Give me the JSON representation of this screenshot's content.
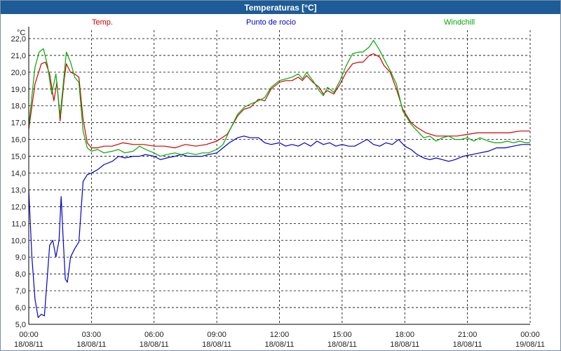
{
  "chart_data": {
    "type": "line",
    "title": "Temperaturas [°C]",
    "ylabel": "°C",
    "xlabel": "",
    "ylim": [
      5.0,
      22.5
    ],
    "xlim": [
      0,
      24
    ],
    "grid": true,
    "legend_placement": "top",
    "y_ticks": [
      "5,0",
      "6,0",
      "7,0",
      "8,0",
      "9,0",
      "10,0",
      "11,0",
      "12,0",
      "13,0",
      "14,0",
      "15,0",
      "16,0",
      "17,0",
      "18,0",
      "19,0",
      "20,0",
      "21,0",
      "22,0"
    ],
    "x_ticks": [
      {
        "time": "00:00",
        "date": "18/08/11"
      },
      {
        "time": "03:00",
        "date": "18/08/11"
      },
      {
        "time": "06:00",
        "date": "18/08/11"
      },
      {
        "time": "09:00",
        "date": "18/08/11"
      },
      {
        "time": "12:00",
        "date": "18/08/11"
      },
      {
        "time": "15:00",
        "date": "18/08/11"
      },
      {
        "time": "18:00",
        "date": "18/08/11"
      },
      {
        "time": "21:00",
        "date": "18/08/11"
      },
      {
        "time": "00:00",
        "date": "19/08/11"
      }
    ],
    "series": [
      {
        "name": "Temp.",
        "color": "#cc0000",
        "points": [
          [
            0.0,
            16.6
          ],
          [
            0.3,
            19.3
          ],
          [
            0.6,
            20.5
          ],
          [
            0.8,
            20.6
          ],
          [
            1.0,
            19.9
          ],
          [
            1.2,
            18.3
          ],
          [
            1.35,
            19.4
          ],
          [
            1.5,
            17.1
          ],
          [
            1.7,
            19.6
          ],
          [
            1.8,
            20.5
          ],
          [
            2.0,
            20.0
          ],
          [
            2.2,
            19.9
          ],
          [
            2.4,
            19.7
          ],
          [
            2.6,
            17.2
          ],
          [
            2.8,
            15.8
          ],
          [
            3.0,
            15.5
          ],
          [
            3.3,
            15.5
          ],
          [
            3.6,
            15.6
          ],
          [
            4.0,
            15.6
          ],
          [
            4.5,
            15.8
          ],
          [
            5.0,
            15.7
          ],
          [
            5.5,
            15.7
          ],
          [
            6.0,
            15.6
          ],
          [
            6.5,
            15.6
          ],
          [
            7.0,
            15.5
          ],
          [
            7.5,
            15.7
          ],
          [
            8.0,
            15.6
          ],
          [
            8.5,
            15.7
          ],
          [
            9.0,
            15.9
          ],
          [
            9.5,
            16.3
          ],
          [
            10.0,
            17.4
          ],
          [
            10.3,
            17.8
          ],
          [
            10.6,
            17.9
          ],
          [
            11.0,
            18.4
          ],
          [
            11.3,
            18.3
          ],
          [
            11.6,
            19.0
          ],
          [
            12.0,
            19.4
          ],
          [
            12.3,
            19.5
          ],
          [
            12.6,
            19.5
          ],
          [
            12.9,
            19.7
          ],
          [
            13.1,
            19.5
          ],
          [
            13.3,
            19.8
          ],
          [
            13.6,
            19.4
          ],
          [
            13.9,
            19.1
          ],
          [
            14.1,
            18.7
          ],
          [
            14.3,
            18.9
          ],
          [
            14.6,
            18.7
          ],
          [
            14.9,
            19.3
          ],
          [
            15.2,
            20.0
          ],
          [
            15.5,
            20.5
          ],
          [
            15.8,
            20.6
          ],
          [
            16.0,
            20.6
          ],
          [
            16.3,
            21.0
          ],
          [
            16.5,
            21.1
          ],
          [
            16.8,
            20.9
          ],
          [
            17.0,
            20.4
          ],
          [
            17.3,
            20.0
          ],
          [
            17.6,
            19.0
          ],
          [
            17.9,
            17.8
          ],
          [
            18.3,
            17.0
          ],
          [
            18.6,
            16.7
          ],
          [
            19.0,
            16.4
          ],
          [
            19.5,
            16.2
          ],
          [
            20.0,
            16.2
          ],
          [
            20.5,
            16.2
          ],
          [
            21.0,
            16.3
          ],
          [
            21.5,
            16.4
          ],
          [
            22.0,
            16.4
          ],
          [
            22.5,
            16.4
          ],
          [
            23.0,
            16.4
          ],
          [
            23.5,
            16.5
          ],
          [
            24.0,
            16.5
          ]
        ]
      },
      {
        "name": "Punto de rocio",
        "color": "#0000cc",
        "points": [
          [
            0.0,
            13.0
          ],
          [
            0.15,
            9.0
          ],
          [
            0.3,
            6.5
          ],
          [
            0.45,
            5.4
          ],
          [
            0.6,
            5.6
          ],
          [
            0.75,
            5.5
          ],
          [
            0.9,
            8.0
          ],
          [
            1.0,
            9.7
          ],
          [
            1.15,
            10.0
          ],
          [
            1.3,
            9.0
          ],
          [
            1.45,
            10.0
          ],
          [
            1.55,
            12.6
          ],
          [
            1.65,
            10.0
          ],
          [
            1.75,
            7.7
          ],
          [
            1.85,
            7.5
          ],
          [
            2.0,
            9.0
          ],
          [
            2.2,
            9.5
          ],
          [
            2.4,
            9.9
          ],
          [
            2.6,
            13.5
          ],
          [
            2.8,
            13.9
          ],
          [
            3.0,
            14.0
          ],
          [
            3.3,
            14.2
          ],
          [
            3.6,
            14.5
          ],
          [
            4.0,
            14.7
          ],
          [
            4.3,
            15.0
          ],
          [
            4.6,
            14.9
          ],
          [
            5.0,
            15.0
          ],
          [
            5.3,
            15.0
          ],
          [
            5.6,
            15.1
          ],
          [
            6.0,
            15.0
          ],
          [
            6.3,
            14.8
          ],
          [
            6.6,
            14.9
          ],
          [
            7.0,
            15.0
          ],
          [
            7.3,
            15.1
          ],
          [
            7.6,
            15.0
          ],
          [
            8.0,
            15.0
          ],
          [
            8.3,
            15.0
          ],
          [
            8.6,
            15.1
          ],
          [
            9.0,
            15.2
          ],
          [
            9.3,
            15.5
          ],
          [
            9.6,
            15.8
          ],
          [
            10.0,
            16.1
          ],
          [
            10.3,
            16.2
          ],
          [
            10.6,
            16.1
          ],
          [
            11.0,
            16.1
          ],
          [
            11.3,
            15.8
          ],
          [
            11.6,
            15.7
          ],
          [
            12.0,
            15.8
          ],
          [
            12.3,
            15.6
          ],
          [
            12.6,
            15.7
          ],
          [
            12.9,
            15.6
          ],
          [
            13.2,
            15.8
          ],
          [
            13.5,
            15.6
          ],
          [
            13.8,
            15.9
          ],
          [
            14.1,
            15.7
          ],
          [
            14.4,
            15.8
          ],
          [
            14.7,
            15.6
          ],
          [
            15.0,
            15.7
          ],
          [
            15.3,
            15.6
          ],
          [
            15.6,
            15.6
          ],
          [
            15.9,
            15.8
          ],
          [
            16.2,
            16.0
          ],
          [
            16.5,
            15.7
          ],
          [
            16.8,
            15.6
          ],
          [
            17.1,
            15.8
          ],
          [
            17.4,
            15.7
          ],
          [
            17.7,
            16.0
          ],
          [
            18.0,
            15.6
          ],
          [
            18.3,
            15.4
          ],
          [
            18.6,
            15.1
          ],
          [
            18.9,
            14.9
          ],
          [
            19.2,
            14.8
          ],
          [
            19.5,
            14.9
          ],
          [
            19.8,
            14.8
          ],
          [
            20.1,
            14.7
          ],
          [
            20.4,
            14.8
          ],
          [
            20.8,
            15.0
          ],
          [
            21.2,
            15.1
          ],
          [
            21.6,
            15.2
          ],
          [
            22.0,
            15.3
          ],
          [
            22.4,
            15.5
          ],
          [
            22.8,
            15.5
          ],
          [
            23.2,
            15.6
          ],
          [
            23.6,
            15.7
          ],
          [
            24.0,
            15.7
          ]
        ]
      },
      {
        "name": "Windchill",
        "color": "#00aa00",
        "points": [
          [
            0.0,
            16.8
          ],
          [
            0.3,
            20.3
          ],
          [
            0.5,
            21.2
          ],
          [
            0.7,
            21.4
          ],
          [
            0.9,
            20.4
          ],
          [
            1.1,
            18.7
          ],
          [
            1.3,
            19.9
          ],
          [
            1.5,
            17.4
          ],
          [
            1.7,
            19.9
          ],
          [
            1.8,
            21.2
          ],
          [
            2.0,
            20.6
          ],
          [
            2.2,
            19.7
          ],
          [
            2.4,
            19.4
          ],
          [
            2.6,
            16.5
          ],
          [
            2.8,
            15.5
          ],
          [
            3.0,
            15.3
          ],
          [
            3.3,
            15.4
          ],
          [
            3.6,
            15.2
          ],
          [
            4.0,
            15.3
          ],
          [
            4.3,
            15.4
          ],
          [
            4.6,
            15.2
          ],
          [
            5.0,
            15.3
          ],
          [
            5.3,
            15.6
          ],
          [
            5.6,
            15.4
          ],
          [
            6.0,
            15.2
          ],
          [
            6.3,
            15.0
          ],
          [
            6.6,
            15.1
          ],
          [
            7.0,
            15.2
          ],
          [
            7.3,
            15.1
          ],
          [
            7.6,
            15.2
          ],
          [
            8.0,
            15.1
          ],
          [
            8.3,
            15.2
          ],
          [
            8.6,
            15.2
          ],
          [
            9.0,
            15.4
          ],
          [
            9.3,
            15.7
          ],
          [
            9.6,
            16.5
          ],
          [
            10.0,
            17.5
          ],
          [
            10.3,
            17.9
          ],
          [
            10.6,
            18.1
          ],
          [
            11.0,
            18.3
          ],
          [
            11.3,
            18.5
          ],
          [
            11.6,
            19.1
          ],
          [
            12.0,
            19.5
          ],
          [
            12.3,
            19.6
          ],
          [
            12.6,
            19.7
          ],
          [
            12.9,
            19.9
          ],
          [
            13.1,
            19.6
          ],
          [
            13.3,
            20.0
          ],
          [
            13.6,
            19.5
          ],
          [
            13.9,
            18.9
          ],
          [
            14.1,
            18.6
          ],
          [
            14.3,
            19.1
          ],
          [
            14.6,
            18.8
          ],
          [
            14.9,
            19.5
          ],
          [
            15.2,
            20.4
          ],
          [
            15.5,
            21.1
          ],
          [
            15.8,
            21.2
          ],
          [
            16.0,
            21.2
          ],
          [
            16.3,
            21.5
          ],
          [
            16.5,
            21.9
          ],
          [
            16.8,
            21.3
          ],
          [
            17.0,
            20.8
          ],
          [
            17.3,
            20.1
          ],
          [
            17.6,
            19.3
          ],
          [
            17.9,
            17.7
          ],
          [
            18.3,
            16.9
          ],
          [
            18.6,
            16.5
          ],
          [
            18.9,
            16.1
          ],
          [
            19.2,
            16.2
          ],
          [
            19.5,
            15.9
          ],
          [
            19.8,
            16.1
          ],
          [
            20.1,
            16.2
          ],
          [
            20.4,
            16.0
          ],
          [
            20.7,
            16.0
          ],
          [
            21.0,
            16.1
          ],
          [
            21.3,
            15.9
          ],
          [
            21.6,
            16.1
          ],
          [
            22.0,
            15.9
          ],
          [
            22.3,
            15.8
          ],
          [
            22.6,
            15.8
          ],
          [
            22.9,
            15.9
          ],
          [
            23.2,
            15.8
          ],
          [
            23.5,
            15.9
          ],
          [
            23.8,
            15.8
          ],
          [
            24.0,
            15.8
          ]
        ]
      }
    ]
  }
}
